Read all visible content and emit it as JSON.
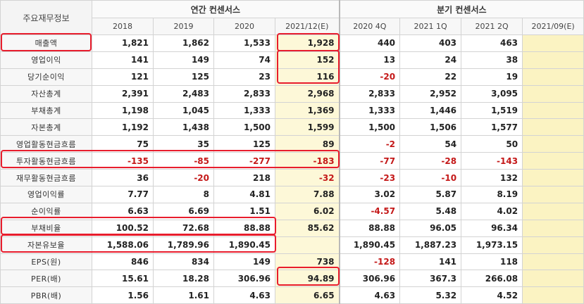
{
  "corner_label": "주요재무정보",
  "groups": {
    "annual": "연간 컨센서스",
    "quarterly": "분기 컨센서스"
  },
  "periods": [
    "2018",
    "2019",
    "2020",
    "2021/12(E)",
    "2020 4Q",
    "2021 1Q",
    "2021 2Q",
    "2021/09(E)"
  ],
  "rows": [
    {
      "label": "매출액",
      "values": [
        "1,821",
        "1,862",
        "1,533",
        "1,928",
        "440",
        "403",
        "463",
        ""
      ]
    },
    {
      "label": "영업이익",
      "values": [
        "141",
        "149",
        "74",
        "152",
        "13",
        "24",
        "38",
        ""
      ]
    },
    {
      "label": "당기순이익",
      "values": [
        "121",
        "125",
        "23",
        "116",
        "-20",
        "22",
        "19",
        ""
      ]
    },
    {
      "label": "자산총계",
      "values": [
        "2,391",
        "2,483",
        "2,833",
        "2,968",
        "2,833",
        "2,952",
        "3,095",
        ""
      ]
    },
    {
      "label": "부채총계",
      "values": [
        "1,198",
        "1,045",
        "1,333",
        "1,369",
        "1,333",
        "1,446",
        "1,519",
        ""
      ]
    },
    {
      "label": "자본총계",
      "values": [
        "1,192",
        "1,438",
        "1,500",
        "1,599",
        "1,500",
        "1,506",
        "1,577",
        ""
      ]
    },
    {
      "label": "영업활동현금흐름",
      "values": [
        "75",
        "35",
        "125",
        "89",
        "-2",
        "54",
        "50",
        ""
      ]
    },
    {
      "label": "투자활동현금흐름",
      "values": [
        "-135",
        "-85",
        "-277",
        "-183",
        "-77",
        "-28",
        "-143",
        ""
      ]
    },
    {
      "label": "재무활동현금흐름",
      "values": [
        "36",
        "-20",
        "218",
        "-32",
        "-23",
        "-10",
        "132",
        ""
      ]
    },
    {
      "label": "영업이익률",
      "values": [
        "7.77",
        "8",
        "4.81",
        "7.88",
        "3.02",
        "5.87",
        "8.19",
        ""
      ]
    },
    {
      "label": "순이익률",
      "values": [
        "6.63",
        "6.69",
        "1.51",
        "6.02",
        "-4.57",
        "5.48",
        "4.02",
        ""
      ]
    },
    {
      "label": "부채비율",
      "values": [
        "100.52",
        "72.68",
        "88.88",
        "85.62",
        "88.88",
        "96.05",
        "96.34",
        ""
      ]
    },
    {
      "label": "자본유보율",
      "values": [
        "1,588.06",
        "1,789.96",
        "1,890.45",
        "",
        "1,890.45",
        "1,887.23",
        "1,973.15",
        ""
      ]
    },
    {
      "label": "EPS(원)",
      "values": [
        "846",
        "834",
        "149",
        "738",
        "-128",
        "141",
        "118",
        ""
      ]
    },
    {
      "label": "PER(배)",
      "values": [
        "15.61",
        "18.28",
        "306.96",
        "94.89",
        "306.96",
        "367.3",
        "266.08",
        ""
      ]
    },
    {
      "label": "PBR(배)",
      "values": [
        "1.56",
        "1.61",
        "4.63",
        "6.65",
        "4.63",
        "5.32",
        "4.52",
        ""
      ]
    }
  ],
  "colors": {
    "negative": "#c41818",
    "estimate_bg": "#fdf8d8",
    "highlight": "#e81d2d"
  }
}
